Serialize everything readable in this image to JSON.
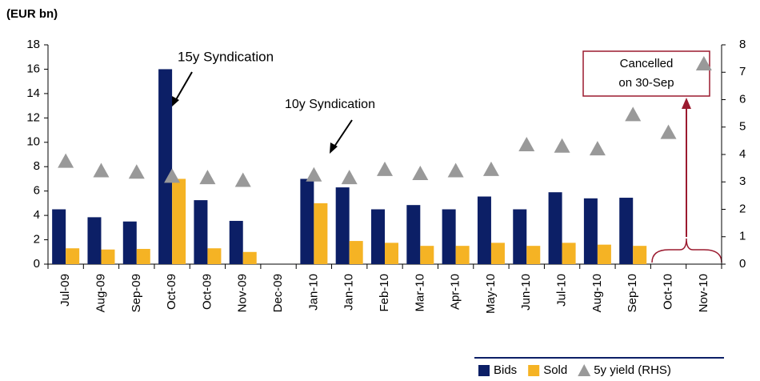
{
  "chart_data": {
    "type": "bar",
    "y_label": "(EUR bn)",
    "categories": [
      "Jul-09",
      "Aug-09",
      "Sep-09",
      "Oct-09",
      "Oct-09",
      "Nov-09",
      "Dec-09",
      "Jan-10",
      "Jan-10",
      "Feb-10",
      "Mar-10",
      "Apr-10",
      "May-10",
      "Jun-10",
      "Jul-10",
      "Aug-10",
      "Sep-10",
      "Oct-10",
      "Nov-10"
    ],
    "series": [
      {
        "name": "Bids",
        "color": "#0c1f66",
        "type": "bar",
        "values": [
          4.5,
          3.85,
          3.5,
          16,
          5.25,
          3.55,
          null,
          7.0,
          6.3,
          4.5,
          4.85,
          4.5,
          5.55,
          4.5,
          5.9,
          5.4,
          5.45,
          null,
          null
        ]
      },
      {
        "name": "Sold",
        "color": "#f5b324",
        "type": "bar",
        "values": [
          1.3,
          1.2,
          1.25,
          7.0,
          1.3,
          1.0,
          null,
          5.0,
          1.9,
          1.75,
          1.5,
          1.5,
          1.75,
          1.5,
          1.75,
          1.6,
          1.5,
          null,
          null
        ]
      },
      {
        "name": "5y yield (RHS)",
        "color": "#999999",
        "type": "scatter",
        "axis": "y2",
        "values": [
          3.75,
          3.4,
          3.35,
          3.2,
          3.15,
          3.05,
          null,
          3.25,
          3.15,
          3.45,
          3.3,
          3.4,
          3.45,
          4.35,
          4.3,
          4.2,
          5.45,
          4.8,
          7.3
        ]
      }
    ],
    "ylim": [
      0,
      18
    ],
    "yticks": [
      0,
      2,
      4,
      6,
      8,
      10,
      12,
      14,
      16,
      18
    ],
    "y2lim": [
      0,
      8
    ],
    "y2ticks": [
      0,
      1,
      2,
      3,
      4,
      5,
      6,
      7,
      8
    ],
    "annotations": [
      "15y Syndication",
      "10y Syndication",
      [
        "Cancelled",
        "on 30-Sep"
      ]
    ],
    "legend": "bottom-right"
  }
}
